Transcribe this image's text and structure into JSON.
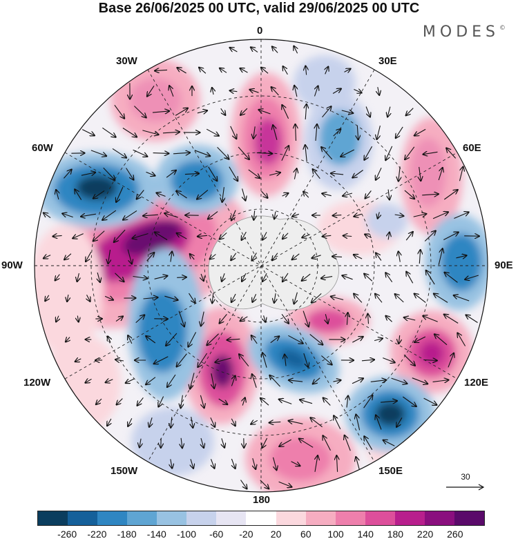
{
  "title": "Base 26/06/2025 00 UTC, valid 29/06/2025 00 UTC",
  "brand": "MODES",
  "brand_mark": "©",
  "longitude_labels": {
    "top": "0",
    "upper_left": "30W",
    "upper_right": "30E",
    "mid_upper_left": "60W",
    "mid_upper_right": "60E",
    "left": "90W",
    "right": "90E",
    "mid_lower_left": "120W",
    "mid_lower_right": "120E",
    "lower_left": "150W",
    "lower_right": "150E",
    "bottom": "180"
  },
  "reference_vector": {
    "label": "30"
  },
  "colorbar": {
    "colors": [
      "#0b3d5e",
      "#15609a",
      "#2f86c2",
      "#5fa5d3",
      "#98c2e2",
      "#c7d2ec",
      "#e7e5f3",
      "#ffffff",
      "#fbd8de",
      "#f6adc1",
      "#ee7fac",
      "#dd4f9b",
      "#b81f8d",
      "#8a0f7e",
      "#5a0a6a"
    ],
    "tick_labels": [
      "-260",
      "-220",
      "-180",
      "-140",
      "-100",
      "-60",
      "-20",
      "20",
      "60",
      "100",
      "140",
      "180",
      "220",
      "260"
    ]
  }
}
